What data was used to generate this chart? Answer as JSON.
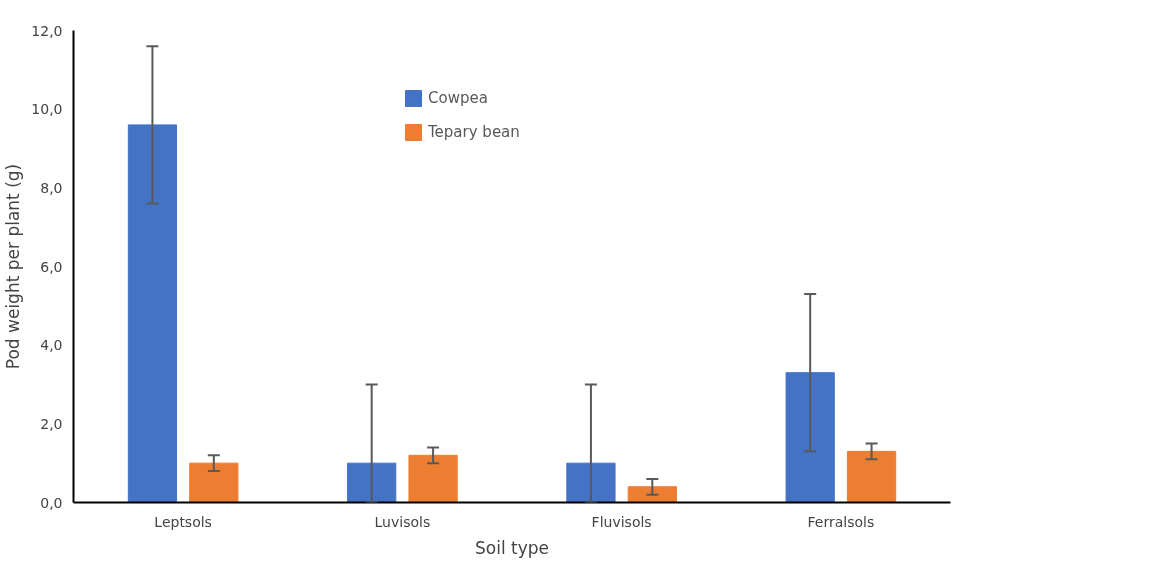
{
  "chart_data": {
    "type": "bar",
    "xlabel": "Soil type",
    "ylabel": "Pod weight per plant (g)",
    "categories": [
      "Leptsols",
      "Luvisols",
      "Fluvisols",
      "Ferralsols"
    ],
    "series": [
      {
        "name": "Cowpea",
        "color": "#4472c4",
        "values": [
          9.6,
          1.0,
          1.0,
          3.3
        ],
        "errors": [
          2.0,
          [
            0,
            3.0
          ],
          [
            0,
            3.0
          ],
          2.0
        ]
      },
      {
        "name": "Tepary bean",
        "color": "#ed7d31",
        "values": [
          1.0,
          1.2,
          0.4,
          1.3
        ],
        "errors": [
          0.2,
          0.2,
          0.2,
          0.2
        ]
      }
    ],
    "ylim": [
      0,
      12
    ],
    "yticks": [
      {
        "value": 0,
        "label": "0,0"
      },
      {
        "value": 2,
        "label": "2,0"
      },
      {
        "value": 4,
        "label": "4,0"
      },
      {
        "value": 6,
        "label": "6,0"
      },
      {
        "value": 8,
        "label": "8,0"
      },
      {
        "value": 10,
        "label": "10,0"
      },
      {
        "value": 12,
        "label": "12,0"
      }
    ],
    "grid": false,
    "legend": "top"
  }
}
